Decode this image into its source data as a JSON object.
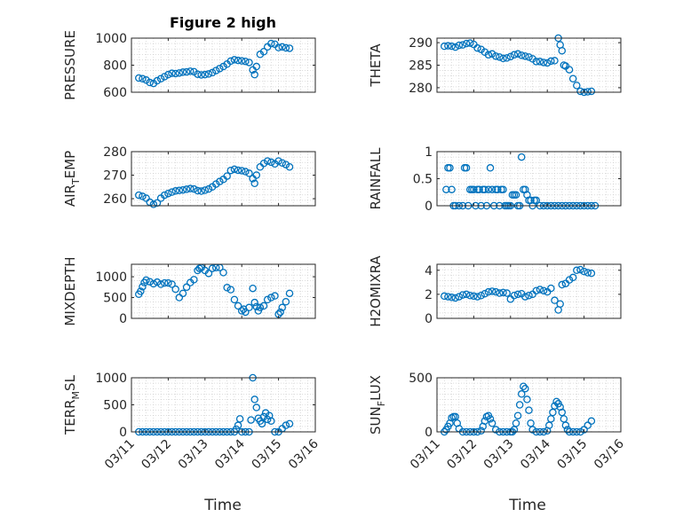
{
  "figure": {
    "title": "Figure 2 high",
    "xlabel": "Time"
  },
  "colors": {
    "marker": "#0072BD",
    "axis": "#262626",
    "grid": "#c8c8c8"
  },
  "chart_data": [
    {
      "type": "scatter",
      "name": "PRESSURE",
      "ylabel": "PRESSURE",
      "ylim": [
        600,
        1000
      ],
      "yticks": [
        600,
        800,
        1000
      ],
      "ytick_labels": [
        "600",
        "800",
        "1000"
      ],
      "x": [
        11.2,
        11.3,
        11.4,
        11.5,
        11.6,
        11.7,
        11.8,
        11.9,
        12.0,
        12.1,
        12.2,
        12.3,
        12.4,
        12.5,
        12.6,
        12.7,
        12.8,
        12.9,
        13.0,
        13.1,
        13.2,
        13.3,
        13.4,
        13.5,
        13.6,
        13.7,
        13.8,
        13.9,
        14.0,
        14.1,
        14.2,
        14.3,
        14.35,
        14.4,
        14.5,
        14.6,
        14.7,
        14.8,
        14.9,
        15.0,
        15.1,
        15.2,
        15.3
      ],
      "y": [
        705,
        700,
        690,
        672,
        665,
        685,
        700,
        715,
        730,
        740,
        738,
        742,
        748,
        750,
        755,
        752,
        733,
        728,
        730,
        735,
        745,
        760,
        775,
        790,
        808,
        830,
        840,
        835,
        832,
        828,
        820,
        765,
        730,
        790,
        880,
        900,
        935,
        960,
        955,
        930,
        935,
        928,
        925
      ]
    },
    {
      "type": "scatter",
      "name": "THETA",
      "ylabel": "THETA",
      "ylim": [
        279,
        291
      ],
      "yticks": [
        280,
        285,
        290
      ],
      "ytick_labels": [
        "280",
        "285",
        "290"
      ],
      "x": [
        11.2,
        11.3,
        11.4,
        11.5,
        11.6,
        11.7,
        11.8,
        11.9,
        12.0,
        12.1,
        12.2,
        12.3,
        12.4,
        12.5,
        12.6,
        12.7,
        12.8,
        12.9,
        13.0,
        13.1,
        13.2,
        13.3,
        13.4,
        13.5,
        13.6,
        13.7,
        13.8,
        13.9,
        14.0,
        14.1,
        14.2,
        14.3,
        14.35,
        14.4,
        14.45,
        14.5,
        14.6,
        14.7,
        14.8,
        14.9,
        15.0,
        15.1,
        15.2
      ],
      "y": [
        289.2,
        289.3,
        289.2,
        289.0,
        289.4,
        289.5,
        289.8,
        289.9,
        289.6,
        288.8,
        288.5,
        287.9,
        287.3,
        287.5,
        287.0,
        286.8,
        286.5,
        286.6,
        286.9,
        287.3,
        287.5,
        287.2,
        287.0,
        286.8,
        286.4,
        285.8,
        285.8,
        285.6,
        285.5,
        285.9,
        286.0,
        291.0,
        289.5,
        288.2,
        285.0,
        284.8,
        284.0,
        282.0,
        280.5,
        279.2,
        279.0,
        279.1,
        279.2
      ]
    },
    {
      "type": "scatter",
      "name": "AIR_TEMP",
      "ylabel": "AIR_TEMP",
      "ylim": [
        257,
        280
      ],
      "yticks": [
        260,
        270,
        280
      ],
      "ytick_labels": [
        "260",
        "270",
        "280"
      ],
      "x": [
        11.2,
        11.3,
        11.4,
        11.5,
        11.6,
        11.7,
        11.8,
        11.9,
        12.0,
        12.1,
        12.2,
        12.3,
        12.4,
        12.5,
        12.6,
        12.7,
        12.8,
        12.9,
        13.0,
        13.1,
        13.2,
        13.3,
        13.4,
        13.5,
        13.6,
        13.7,
        13.8,
        13.9,
        14.0,
        14.1,
        14.2,
        14.3,
        14.35,
        14.4,
        14.5,
        14.6,
        14.7,
        14.8,
        14.9,
        15.0,
        15.1,
        15.2,
        15.3
      ],
      "y": [
        261.5,
        261.0,
        260.2,
        258.5,
        257.6,
        258.2,
        260.2,
        261.5,
        262.2,
        262.8,
        263.3,
        263.5,
        263.7,
        264.0,
        264.3,
        264.1,
        263.4,
        263.2,
        263.6,
        264.1,
        265.0,
        266.2,
        267.3,
        268.2,
        269.6,
        272.0,
        272.5,
        272.1,
        271.9,
        271.5,
        270.8,
        268.5,
        266.5,
        270.0,
        273.5,
        275.0,
        276.0,
        275.5,
        274.8,
        276.0,
        275.2,
        274.5,
        273.5
      ]
    },
    {
      "type": "scatter",
      "name": "RAINFALL",
      "ylabel": "RAINFALL",
      "ylim": [
        0,
        1
      ],
      "yticks": [
        0,
        0.5,
        1
      ],
      "ytick_labels": [
        "0",
        "0.5",
        "1"
      ],
      "x": [
        11.25,
        11.3,
        11.35,
        11.4,
        11.45,
        11.5,
        11.6,
        11.7,
        11.75,
        11.8,
        11.85,
        11.9,
        11.95,
        12.0,
        12.05,
        12.1,
        12.15,
        12.2,
        12.25,
        12.3,
        12.35,
        12.4,
        12.45,
        12.5,
        12.55,
        12.6,
        12.65,
        12.7,
        12.75,
        12.8,
        12.85,
        12.9,
        12.95,
        13.0,
        13.05,
        13.1,
        13.15,
        13.2,
        13.25,
        13.3,
        13.35,
        13.4,
        13.45,
        13.5,
        13.55,
        13.6,
        13.65,
        13.7,
        13.8,
        13.9,
        14.0,
        14.1,
        14.2,
        14.3,
        14.4,
        14.5,
        14.6,
        14.7,
        14.8,
        14.9,
        15.0,
        15.1,
        15.2,
        15.3
      ],
      "y": [
        0.3,
        0.7,
        0.7,
        0.3,
        0.0,
        0.0,
        0.0,
        0.0,
        0.7,
        0.7,
        0.0,
        0.3,
        0.3,
        0.3,
        0.0,
        0.3,
        0.3,
        0.0,
        0.3,
        0.3,
        0.0,
        0.3,
        0.7,
        0.3,
        0.0,
        0.3,
        0.3,
        0.0,
        0.3,
        0.3,
        0.0,
        0.0,
        0.0,
        0.0,
        0.2,
        0.2,
        0.2,
        0.0,
        0.0,
        0.9,
        0.3,
        0.3,
        0.2,
        0.1,
        0.1,
        0.0,
        0.1,
        0.1,
        0.0,
        0.0,
        0.0,
        0.0,
        0.0,
        0.0,
        0.0,
        0.0,
        0.0,
        0.0,
        0.0,
        0.0,
        0.0,
        0.0,
        0.0,
        0.0
      ]
    },
    {
      "type": "scatter",
      "name": "MIXDEPTH",
      "ylabel": "MIXDEPTH",
      "ylim": [
        0,
        1300
      ],
      "yticks": [
        0,
        500,
        1000
      ],
      "ytick_labels": [
        "0",
        "500",
        "1000"
      ],
      "x": [
        11.2,
        11.25,
        11.3,
        11.35,
        11.4,
        11.5,
        11.6,
        11.7,
        11.8,
        11.9,
        12.0,
        12.1,
        12.2,
        12.3,
        12.4,
        12.5,
        12.6,
        12.7,
        12.8,
        12.85,
        12.9,
        13.0,
        13.1,
        13.2,
        13.3,
        13.4,
        13.5,
        13.6,
        13.7,
        13.8,
        13.9,
        14.0,
        14.05,
        14.1,
        14.2,
        14.3,
        14.35,
        14.4,
        14.45,
        14.5,
        14.6,
        14.7,
        14.8,
        14.9,
        15.0,
        15.05,
        15.1,
        15.2,
        15.3
      ],
      "y": [
        580,
        650,
        760,
        860,
        920,
        880,
        830,
        870,
        820,
        850,
        850,
        820,
        700,
        500,
        600,
        750,
        860,
        930,
        1150,
        1200,
        1220,
        1150,
        1080,
        1200,
        1220,
        1220,
        1100,
        740,
        690,
        450,
        300,
        180,
        220,
        150,
        260,
        720,
        380,
        280,
        180,
        260,
        300,
        450,
        500,
        540,
        100,
        150,
        260,
        400,
        600
      ]
    },
    {
      "type": "scatter",
      "name": "H2OMIXRA",
      "ylabel": "H2OMIXRA",
      "ylim": [
        0,
        4.5
      ],
      "yticks": [
        0,
        2,
        4
      ],
      "ytick_labels": [
        "0",
        "2",
        "4"
      ],
      "x": [
        11.2,
        11.3,
        11.4,
        11.5,
        11.6,
        11.7,
        11.8,
        11.9,
        12.0,
        12.1,
        12.2,
        12.3,
        12.4,
        12.5,
        12.6,
        12.7,
        12.8,
        12.9,
        13.0,
        13.1,
        13.2,
        13.3,
        13.4,
        13.5,
        13.6,
        13.7,
        13.8,
        13.9,
        14.0,
        14.1,
        14.2,
        14.3,
        14.35,
        14.4,
        14.5,
        14.6,
        14.7,
        14.8,
        14.9,
        15.0,
        15.1,
        15.2
      ],
      "y": [
        1.85,
        1.8,
        1.75,
        1.7,
        1.8,
        1.95,
        2.0,
        1.9,
        1.85,
        1.8,
        1.9,
        2.05,
        2.2,
        2.25,
        2.2,
        2.1,
        2.15,
        2.1,
        1.6,
        1.9,
        2.0,
        2.05,
        1.8,
        1.9,
        2.0,
        2.3,
        2.4,
        2.3,
        2.2,
        2.5,
        1.5,
        0.7,
        1.2,
        2.8,
        2.9,
        3.2,
        3.4,
        4.0,
        4.05,
        3.9,
        3.8,
        3.75
      ]
    },
    {
      "type": "scatter",
      "name": "TERR_MSL",
      "ylabel": "TERR_MSL",
      "ylim": [
        0,
        1000
      ],
      "yticks": [
        0,
        500,
        1000
      ],
      "ytick_labels": [
        "0",
        "500",
        "1000"
      ],
      "x": [
        11.2,
        11.3,
        11.4,
        11.5,
        11.6,
        11.7,
        11.8,
        11.9,
        12.0,
        12.1,
        12.2,
        12.3,
        12.4,
        12.5,
        12.6,
        12.7,
        12.8,
        12.9,
        13.0,
        13.1,
        13.2,
        13.3,
        13.4,
        13.5,
        13.6,
        13.7,
        13.8,
        13.85,
        13.9,
        13.95,
        14.0,
        14.1,
        14.2,
        14.25,
        14.3,
        14.35,
        14.4,
        14.45,
        14.5,
        14.55,
        14.6,
        14.65,
        14.7,
        14.75,
        14.8,
        14.9,
        15.0,
        15.1,
        15.2,
        15.3
      ],
      "y": [
        0,
        0,
        0,
        0,
        0,
        0,
        0,
        0,
        0,
        0,
        0,
        0,
        0,
        0,
        0,
        0,
        0,
        0,
        0,
        0,
        0,
        0,
        0,
        0,
        0,
        0,
        0,
        50,
        120,
        240,
        0,
        0,
        0,
        220,
        1000,
        600,
        450,
        250,
        200,
        150,
        280,
        350,
        230,
        300,
        200,
        0,
        0,
        60,
        120,
        150
      ]
    },
    {
      "type": "scatter",
      "name": "SUN_FLUX",
      "ylabel": "SUN_FLUX",
      "ylim": [
        0,
        500
      ],
      "yticks": [
        0,
        500
      ],
      "ytick_labels": [
        "0",
        "500"
      ],
      "x": [
        11.2,
        11.25,
        11.3,
        11.35,
        11.4,
        11.45,
        11.5,
        11.55,
        11.6,
        11.7,
        11.8,
        11.9,
        12.0,
        12.1,
        12.2,
        12.25,
        12.3,
        12.35,
        12.4,
        12.45,
        12.5,
        12.6,
        12.7,
        12.8,
        12.9,
        13.0,
        13.05,
        13.1,
        13.15,
        13.2,
        13.25,
        13.3,
        13.35,
        13.4,
        13.45,
        13.5,
        13.55,
        13.6,
        13.7,
        13.8,
        13.9,
        14.0,
        14.05,
        14.1,
        14.15,
        14.2,
        14.25,
        14.3,
        14.35,
        14.4,
        14.45,
        14.5,
        14.55,
        14.6,
        14.7,
        14.8,
        14.9,
        15.0,
        15.1,
        15.2
      ],
      "y": [
        0,
        20,
        50,
        80,
        130,
        140,
        140,
        80,
        30,
        0,
        0,
        0,
        0,
        0,
        10,
        50,
        100,
        140,
        150,
        120,
        80,
        20,
        0,
        0,
        0,
        0,
        0,
        20,
        80,
        150,
        250,
        350,
        420,
        400,
        300,
        200,
        80,
        20,
        0,
        0,
        0,
        10,
        60,
        120,
        180,
        240,
        280,
        260,
        230,
        180,
        120,
        60,
        20,
        0,
        0,
        0,
        0,
        20,
        60,
        100
      ]
    }
  ]
}
